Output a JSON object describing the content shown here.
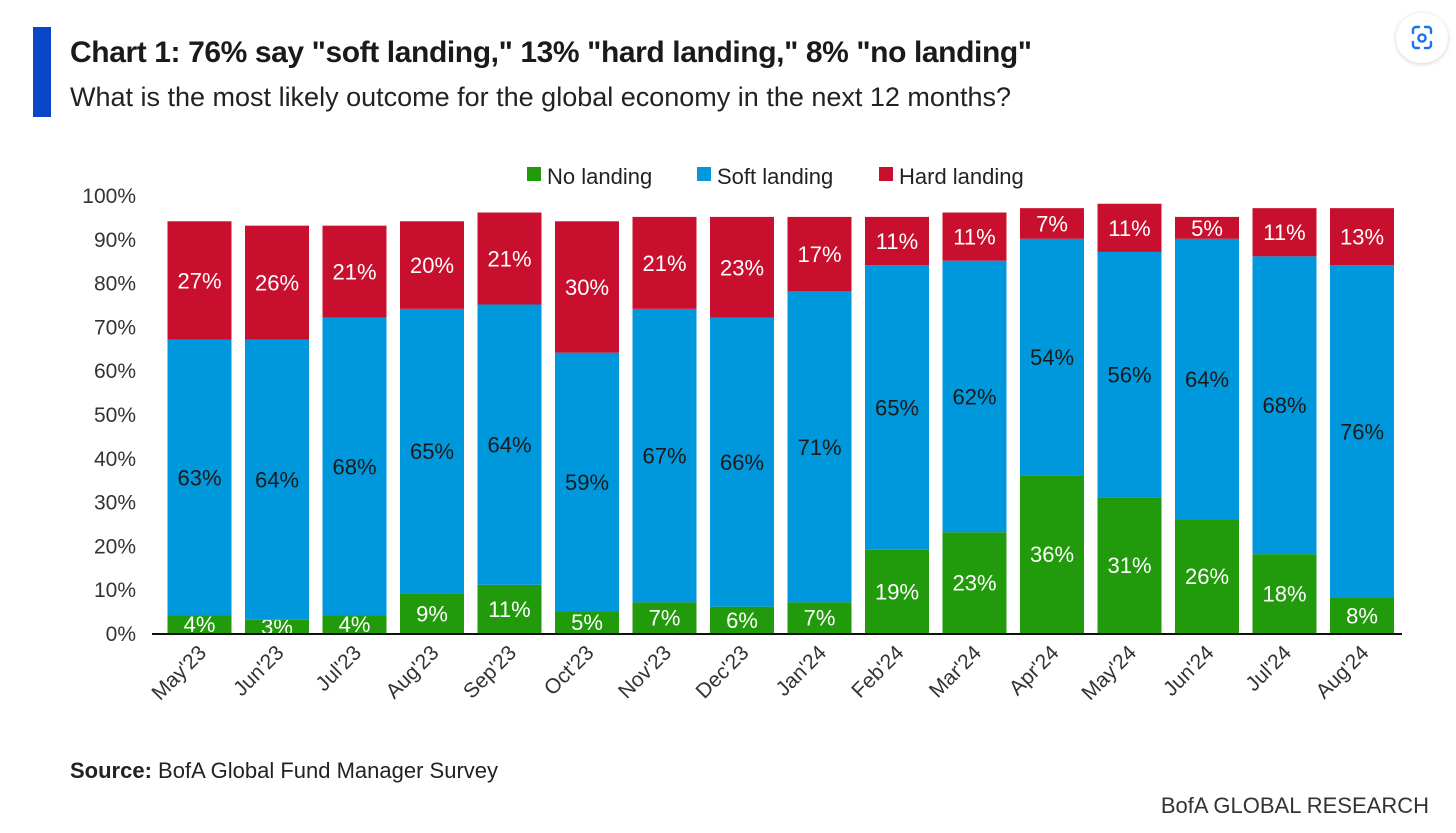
{
  "title": "Chart 1:  76% say \"soft landing,\" 13% \"hard landing,\" 8% \"no landing\"",
  "subtitle": "What is the most likely outcome for the global economy in the next 12 months?",
  "source_label": "Source:",
  "source_text": "BofA Global Fund Manager Survey",
  "brand": "BofA GLOBAL RESEARCH",
  "expand_icon": "scan-icon",
  "colors": {
    "no_landing": "#219a0b",
    "soft_landing": "#0098dc",
    "hard_landing": "#c8102e",
    "accent": "#0a46c8"
  },
  "chart_data": {
    "type": "bar",
    "stacked": true,
    "categories": [
      "May'23",
      "Jun'23",
      "Jul'23",
      "Aug'23",
      "Sep'23",
      "Oct'23",
      "Nov'23",
      "Dec'23",
      "Jan'24",
      "Feb'24",
      "Mar'24",
      "Apr'24",
      "May'24",
      "Jun'24",
      "Jul'24",
      "Aug'24"
    ],
    "series": [
      {
        "name": "No landing",
        "color": "#219a0b",
        "values": [
          4,
          3,
          4,
          9,
          11,
          5,
          7,
          6,
          7,
          19,
          23,
          36,
          31,
          26,
          18,
          8
        ]
      },
      {
        "name": "Soft landing",
        "color": "#0098dc",
        "values": [
          63,
          64,
          68,
          65,
          64,
          59,
          67,
          66,
          71,
          65,
          62,
          54,
          56,
          64,
          68,
          76
        ]
      },
      {
        "name": "Hard landing",
        "color": "#c8102e",
        "values": [
          27,
          26,
          21,
          20,
          21,
          30,
          21,
          23,
          17,
          11,
          11,
          7,
          11,
          5,
          11,
          13
        ]
      }
    ],
    "ylim": [
      0,
      100
    ],
    "yticks": [
      "0%",
      "10%",
      "20%",
      "30%",
      "40%",
      "50%",
      "60%",
      "70%",
      "80%",
      "90%",
      "100%"
    ],
    "legend_position": "top-center",
    "grid": false
  }
}
